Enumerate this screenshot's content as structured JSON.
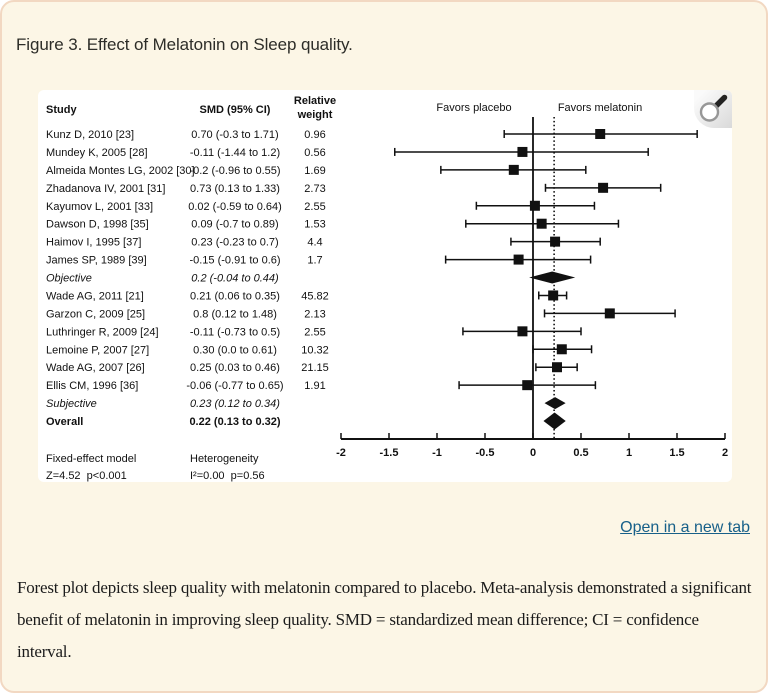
{
  "figure": {
    "title": "Figure 3. Effect of Melatonin on Sleep quality."
  },
  "links": {
    "open_in_new_tab": "Open in a new tab"
  },
  "caption": {
    "text": "Forest plot depicts sleep quality with melatonin compared to placebo. Meta-analysis demonstrated a significant benefit of melatonin in improving sleep quality. SMD = standardized mean difference; CI = confidence interval."
  },
  "colors": {
    "page_bg": "#fcf6e6",
    "page_border": "#f2d8c2",
    "panel_bg": "#ffffff",
    "link": "#186089",
    "plot_ink": "#111111"
  },
  "chart_data": {
    "type": "forest",
    "columns": [
      "Study",
      "SMD (95% CI)",
      "Relative weight"
    ],
    "favors_left": "Favors placebo",
    "favors_right": "Favors melatonin",
    "axis": {
      "min": -2,
      "max": 2,
      "ticks": [
        -2,
        -1.5,
        -1,
        -0.5,
        0,
        0.5,
        1,
        1.5,
        2
      ],
      "zero_line": 0,
      "pooled_line": 0.22
    },
    "rows": [
      {
        "study": "Kunz D, 2010 [23]",
        "smd_label": "0.70 (-0.3 to 1.71)",
        "smd": 0.7,
        "low": -0.3,
        "high": 1.71,
        "weight": "0.96",
        "style": "study"
      },
      {
        "study": "Mundey K, 2005 [28]",
        "smd_label": "-0.11 (-1.44 to 1.2)",
        "smd": -0.11,
        "low": -1.44,
        "high": 1.2,
        "weight": "0.56",
        "style": "study"
      },
      {
        "study": "Almeida Montes LG, 2002 [30]",
        "smd_label": "-0.2 (-0.96 to 0.55)",
        "smd": -0.2,
        "low": -0.96,
        "high": 0.55,
        "weight": "1.69",
        "style": "study"
      },
      {
        "study": "Zhadanova IV, 2001 [31]",
        "smd_label": "0.73 (0.13 to 1.33)",
        "smd": 0.73,
        "low": 0.13,
        "high": 1.33,
        "weight": "2.73",
        "style": "study"
      },
      {
        "study": "Kayumov L, 2001 [33]",
        "smd_label": "0.02 (-0.59 to 0.64)",
        "smd": 0.02,
        "low": -0.59,
        "high": 0.64,
        "weight": "2.55",
        "style": "study"
      },
      {
        "study": "Dawson D, 1998 [35]",
        "smd_label": "0.09 (-0.7 to 0.89)",
        "smd": 0.09,
        "low": -0.7,
        "high": 0.89,
        "weight": "1.53",
        "style": "study"
      },
      {
        "study": "Haimov I, 1995 [37]",
        "smd_label": "0.23 (-0.23 to 0.7)",
        "smd": 0.23,
        "low": -0.23,
        "high": 0.7,
        "weight": "4.4",
        "style": "study"
      },
      {
        "study": "James SP, 1989 [39]",
        "smd_label": "-0.15 (-0.91 to 0.6)",
        "smd": -0.15,
        "low": -0.91,
        "high": 0.6,
        "weight": "1.7",
        "style": "study"
      },
      {
        "study": "Objective",
        "smd_label": "0.2 (-0.04 to 0.44)",
        "smd": 0.2,
        "low": -0.04,
        "high": 0.44,
        "weight": "",
        "style": "subtotal"
      },
      {
        "study": "Wade AG, 2011 [21]",
        "smd_label": "0.21 (0.06 to 0.35)",
        "smd": 0.21,
        "low": 0.06,
        "high": 0.35,
        "weight": "45.82",
        "style": "study"
      },
      {
        "study": "Garzon C, 2009 [25]",
        "smd_label": "0.8 (0.12 to 1.48)",
        "smd": 0.8,
        "low": 0.12,
        "high": 1.48,
        "weight": "2.13",
        "style": "study"
      },
      {
        "study": "Luthringer R, 2009 [24]",
        "smd_label": "-0.11 (-0.73 to 0.5)",
        "smd": -0.11,
        "low": -0.73,
        "high": 0.5,
        "weight": "2.55",
        "style": "study"
      },
      {
        "study": "Lemoine P, 2007 [27]",
        "smd_label": "0.30 (0.0 to 0.61)",
        "smd": 0.3,
        "low": 0.0,
        "high": 0.61,
        "weight": "10.32",
        "style": "study"
      },
      {
        "study": "Wade AG, 2007 [26]",
        "smd_label": "0.25 (0.03 to 0.46)",
        "smd": 0.25,
        "low": 0.03,
        "high": 0.46,
        "weight": "21.15",
        "style": "study"
      },
      {
        "study": "Ellis CM, 1996 [36]",
        "smd_label": "-0.06 (-0.77 to 0.65)",
        "smd": -0.06,
        "low": -0.77,
        "high": 0.65,
        "weight": "1.91",
        "style": "study"
      },
      {
        "study": "Subjective",
        "smd_label": "0.23 (0.12 to 0.34)",
        "smd": 0.23,
        "low": 0.12,
        "high": 0.34,
        "weight": "",
        "style": "subtotal"
      },
      {
        "study": "Overall",
        "smd_label": "0.22 (0.13 to 0.32)",
        "smd": 0.22,
        "low": 0.13,
        "high": 0.32,
        "weight": "",
        "style": "overall"
      }
    ],
    "footer": {
      "model_label": "Fixed-effect model",
      "model_stats": "Z=4.52  p<0.001",
      "heterogeneity_label": "Heterogeneity",
      "heterogeneity_stats": "I²=0.00  p=0.56"
    }
  }
}
